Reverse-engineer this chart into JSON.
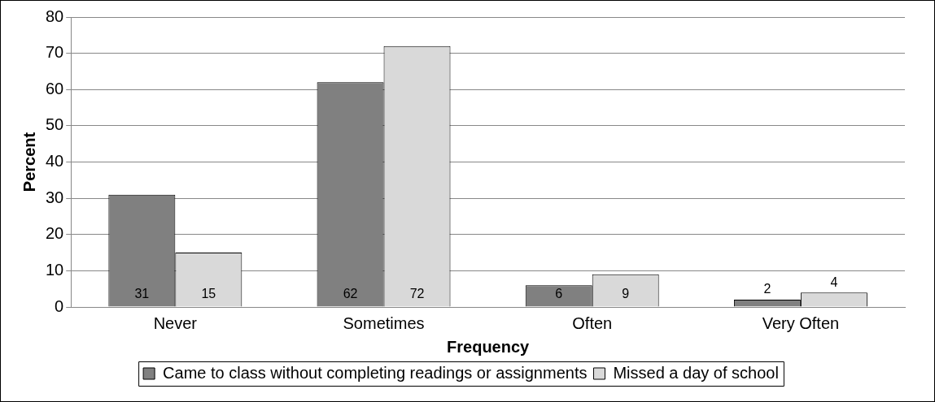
{
  "chart_data": {
    "type": "bar",
    "xlabel": "Frequency",
    "ylabel": "Percent",
    "categories": [
      "Never",
      "Sometimes",
      "Often",
      "Very Often"
    ],
    "series": [
      {
        "name": "Came to class without completing readings or assignments",
        "color": "#808080",
        "values": [
          31,
          62,
          6,
          2
        ]
      },
      {
        "name": "Missed a day of school",
        "color": "#d9d9d9",
        "values": [
          15,
          72,
          9,
          4
        ]
      }
    ],
    "ylim": [
      0,
      80
    ],
    "yticks": [
      0,
      10,
      20,
      30,
      40,
      50,
      60,
      70,
      80
    ],
    "grid": "y",
    "legend": "bottom",
    "data_labels": true
  }
}
